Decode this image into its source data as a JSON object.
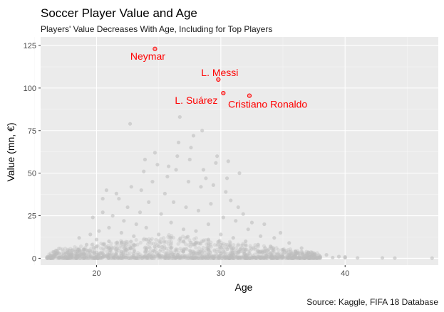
{
  "chart_data": {
    "type": "scatter",
    "title": "Soccer Player Value and Age",
    "subtitle": "Players' Value Decreases With Age, Including for Top Players",
    "caption": "Source: Kaggle, FIFA 18 Database",
    "xlabel": "Age",
    "ylabel": "Value (mn, €)",
    "xlim": [
      15.5,
      47.5
    ],
    "ylim": [
      -4,
      130
    ],
    "x_ticks": [
      20,
      30,
      40
    ],
    "y_ticks": [
      0,
      25,
      50,
      75,
      100,
      125
    ],
    "grid": true,
    "colors": {
      "panel": "#ebebeb",
      "grid_major": "#ffffff",
      "points": "#bebebe",
      "highlight": "#ff0000",
      "highlight_fill": "#f4a6a6"
    },
    "highlighted": [
      {
        "label": "Neymar",
        "x": 24.7,
        "y": 123
      },
      {
        "label": "L. Messi",
        "x": 29.8,
        "y": 105
      },
      {
        "label": "L. Suárez",
        "x": 30.2,
        "y": 97
      },
      {
        "label": "Cristiano Ronaldo",
        "x": 32.3,
        "y": 95.5
      }
    ],
    "points": [
      [
        16,
        0.1
      ],
      [
        16.5,
        0.2
      ],
      [
        17,
        0.3
      ],
      [
        17,
        0.8
      ],
      [
        17.2,
        0.5
      ],
      [
        17.5,
        1
      ],
      [
        17.8,
        2
      ],
      [
        18,
        0.6
      ],
      [
        18,
        1.5
      ],
      [
        18,
        3
      ],
      [
        18.3,
        4
      ],
      [
        18.7,
        2
      ],
      [
        18.6,
        12
      ],
      [
        19,
        0.7
      ],
      [
        19,
        2.5
      ],
      [
        19,
        5
      ],
      [
        19.2,
        8
      ],
      [
        19.5,
        14
      ],
      [
        19.7,
        24
      ],
      [
        20,
        1
      ],
      [
        20,
        3.5
      ],
      [
        20,
        7
      ],
      [
        20,
        11
      ],
      [
        20.2,
        16
      ],
      [
        20.5,
        27
      ],
      [
        20.8,
        40
      ],
      [
        20.5,
        35
      ],
      [
        21,
        2
      ],
      [
        21,
        6
      ],
      [
        21,
        10
      ],
      [
        21,
        18
      ],
      [
        21.3,
        25
      ],
      [
        21.6,
        38
      ],
      [
        21.8,
        35
      ],
      [
        22,
        4
      ],
      [
        22,
        9
      ],
      [
        22,
        15
      ],
      [
        22.2,
        22
      ],
      [
        22.5,
        30
      ],
      [
        22.7,
        79
      ],
      [
        22.8,
        42
      ],
      [
        23,
        3
      ],
      [
        23,
        8
      ],
      [
        23,
        13
      ],
      [
        23.2,
        20
      ],
      [
        23.5,
        27
      ],
      [
        23.6,
        40
      ],
      [
        23.8,
        51
      ],
      [
        23.9,
        58
      ],
      [
        24,
        5
      ],
      [
        24,
        11
      ],
      [
        24,
        18
      ],
      [
        24.2,
        33
      ],
      [
        24.5,
        45
      ],
      [
        24.7,
        62
      ],
      [
        24.9,
        55
      ],
      [
        25,
        2
      ],
      [
        25,
        7
      ],
      [
        25,
        14
      ],
      [
        25.2,
        26
      ],
      [
        25.5,
        38
      ],
      [
        25.7,
        48
      ],
      [
        25.8,
        54
      ],
      [
        26,
        6
      ],
      [
        26,
        12
      ],
      [
        26,
        21
      ],
      [
        26.2,
        33
      ],
      [
        26.4,
        52
      ],
      [
        26.5,
        60
      ],
      [
        26.6,
        68
      ],
      [
        26.7,
        83
      ],
      [
        27,
        4
      ],
      [
        27,
        10
      ],
      [
        27,
        17
      ],
      [
        27.2,
        30
      ],
      [
        27.4,
        45
      ],
      [
        27.5,
        58
      ],
      [
        27.6,
        65
      ],
      [
        27.8,
        72
      ],
      [
        28,
        3
      ],
      [
        28,
        9
      ],
      [
        28,
        16
      ],
      [
        28.2,
        28
      ],
      [
        28.4,
        42
      ],
      [
        28.6,
        52
      ],
      [
        28.5,
        75
      ],
      [
        28.8,
        47
      ],
      [
        29,
        5
      ],
      [
        29,
        11
      ],
      [
        29,
        20
      ],
      [
        29.2,
        32
      ],
      [
        29.4,
        43
      ],
      [
        29.6,
        56
      ],
      [
        29.7,
        60
      ],
      [
        30,
        3
      ],
      [
        30,
        8
      ],
      [
        30,
        14
      ],
      [
        30.2,
        24
      ],
      [
        30.4,
        39
      ],
      [
        30.5,
        47
      ],
      [
        30.6,
        57
      ],
      [
        30.8,
        34
      ],
      [
        31,
        2
      ],
      [
        31,
        6
      ],
      [
        31,
        12
      ],
      [
        31.2,
        22
      ],
      [
        31.4,
        30
      ],
      [
        31.5,
        50
      ],
      [
        31.8,
        26
      ],
      [
        32,
        1.5
      ],
      [
        32,
        5
      ],
      [
        32,
        10
      ],
      [
        32.2,
        17
      ],
      [
        32.5,
        21
      ],
      [
        33,
        1
      ],
      [
        33,
        4
      ],
      [
        33,
        8
      ],
      [
        33.2,
        13
      ],
      [
        33.5,
        20
      ],
      [
        34,
        1
      ],
      [
        34,
        3
      ],
      [
        34,
        7
      ],
      [
        34.3,
        12
      ],
      [
        34.8,
        15
      ],
      [
        35,
        1
      ],
      [
        35,
        2.5
      ],
      [
        35,
        5
      ],
      [
        35.5,
        9
      ],
      [
        36,
        0.8
      ],
      [
        36,
        2
      ],
      [
        36,
        4
      ],
      [
        36.5,
        6
      ],
      [
        37,
        0.5
      ],
      [
        37,
        1.5
      ],
      [
        37.5,
        3
      ],
      [
        38,
        0.5
      ],
      [
        38,
        1
      ],
      [
        38.5,
        2
      ],
      [
        39,
        0.4
      ],
      [
        39.5,
        1
      ],
      [
        40,
        0.3
      ],
      [
        40,
        0.8
      ],
      [
        41,
        0.2
      ],
      [
        43,
        0.2
      ],
      [
        44,
        0.1
      ],
      [
        47,
        0.1
      ]
    ]
  }
}
